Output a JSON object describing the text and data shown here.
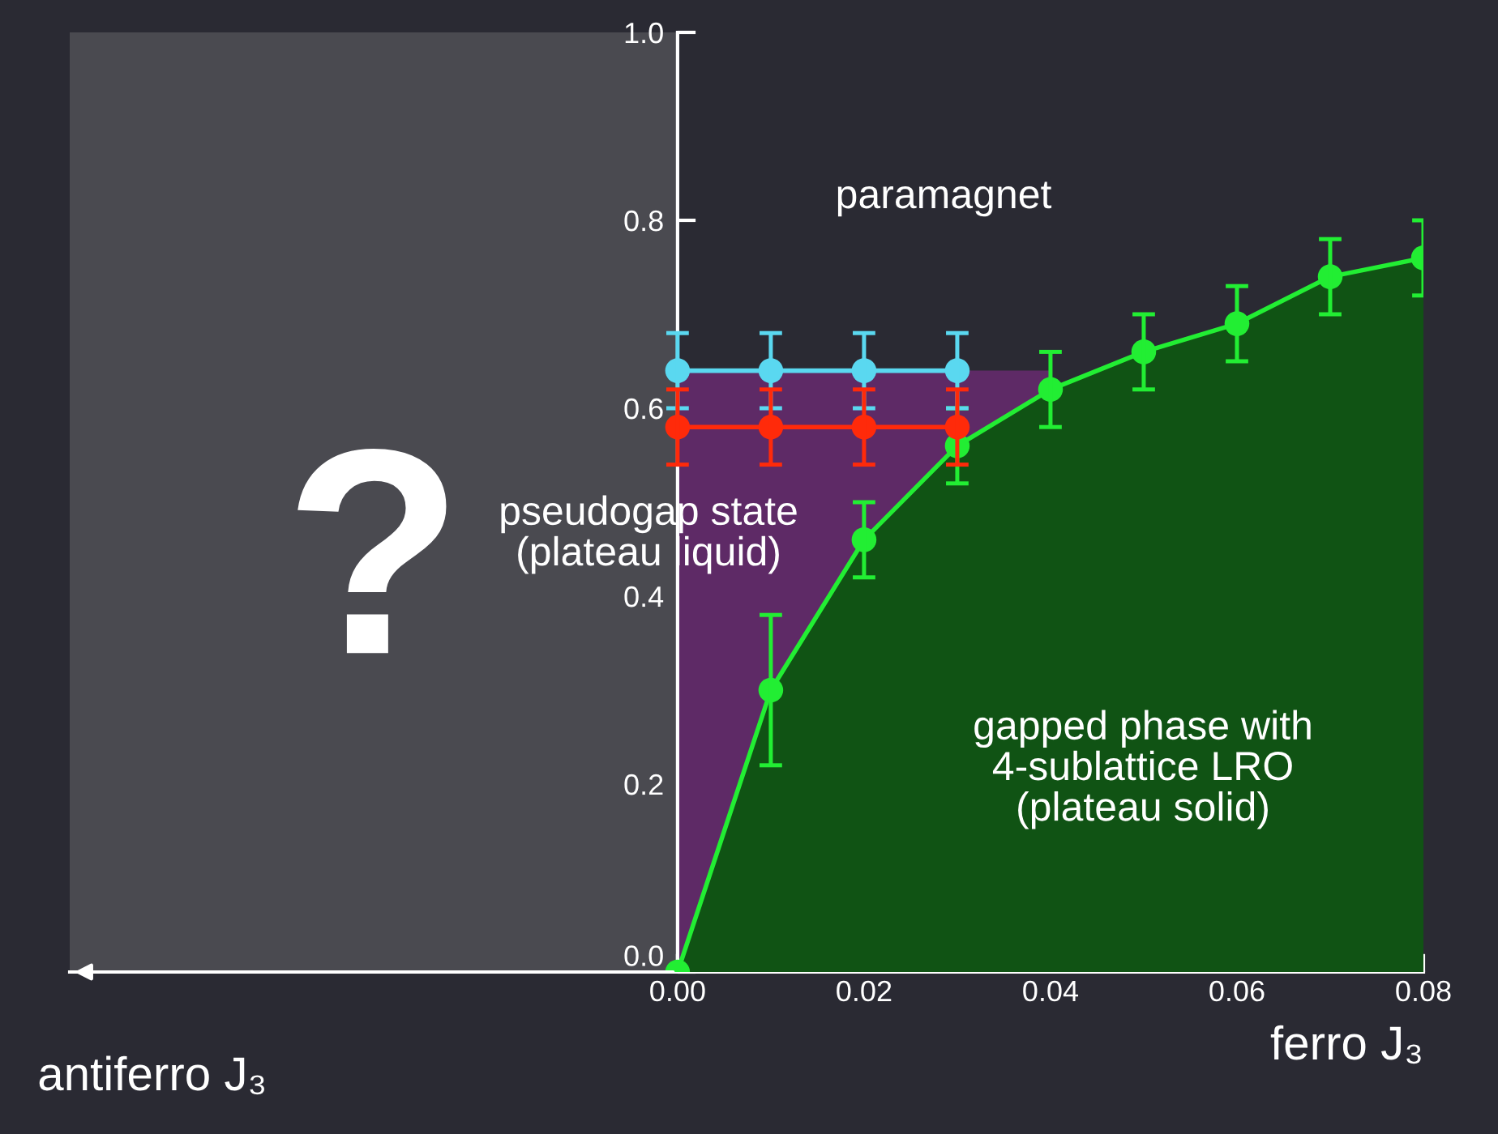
{
  "chart_data": {
    "type": "line",
    "x": [
      0,
      0.01,
      0.02,
      0.03
    ],
    "xlim": [
      -0.0652,
      0.08
    ],
    "ylim": [
      0,
      1.0
    ],
    "xticks": [
      {
        "value": 0,
        "label": "0.00"
      },
      {
        "value": 0.02,
        "label": "0.02"
      },
      {
        "value": 0.04,
        "label": "0.04"
      },
      {
        "value": 0.06,
        "label": "0.06"
      },
      {
        "value": 0.08,
        "label": "0.08"
      }
    ],
    "yticks": [
      {
        "value": 0,
        "label": "0.0"
      },
      {
        "value": 0.2,
        "label": "0.2"
      },
      {
        "value": 0.4,
        "label": "0.4"
      },
      {
        "value": 0.6,
        "label": "0.6"
      },
      {
        "value": 0.8,
        "label": "0.8"
      },
      {
        "value": 1.0,
        "label": "1.0"
      }
    ],
    "xlabel": "ferro J₃",
    "series": [
      {
        "type": "area",
        "color": "#5e2a66",
        "x": [
          0,
          0.04
        ],
        "values": [
          0.64,
          0.64
        ],
        "marker": "none"
      },
      {
        "type": "area",
        "color": "#22ee33",
        "x": [
          0,
          0.01,
          0.02,
          0.03,
          0.04,
          0.05,
          0.06,
          0.07,
          0.08
        ],
        "values": [
          0,
          0.3,
          0.46,
          0.56,
          0.62,
          0.66,
          0.69,
          0.74,
          0.76
        ],
        "errors": [
          null,
          0.08,
          0.04,
          0.04,
          0.04,
          0.04,
          0.04,
          0.04,
          0.04
        ]
      },
      {
        "color": "#5ad8f0",
        "values": [
          0.64,
          0.64,
          0.64,
          0.64
        ],
        "errors": [
          0.04,
          0.04,
          0.04,
          0.04
        ]
      },
      {
        "color": "#ff2a0a",
        "values": [
          0.58,
          0.58,
          0.58,
          0.58
        ],
        "errors": [
          0.04,
          0.04,
          0.04,
          0.04
        ]
      }
    ],
    "bands": [
      {
        "axis": "x",
        "from": -0.0652,
        "to": 0,
        "label": "?",
        "color": "#4a4a50"
      }
    ],
    "annotations": [
      "paramagnet",
      "pseudogap state\n(plateau liquid)",
      "gapped phase with\n4-sublattice LRO\n(plateau solid)",
      "antiferro J₃"
    ],
    "marker": "circle",
    "line_style": "solid",
    "grid": false,
    "legend": false
  }
}
